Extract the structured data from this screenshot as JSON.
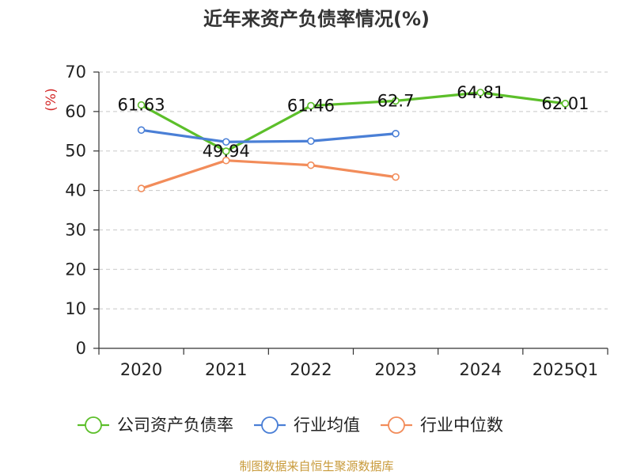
{
  "chart_data": {
    "type": "line",
    "title": "近年来资产负债率情况(%)",
    "ylabel": "(%)",
    "xlabel": "",
    "categories": [
      "2020",
      "2021",
      "2022",
      "2023",
      "2024",
      "2025Q1"
    ],
    "ylim": [
      0,
      70
    ],
    "yticks": [
      0,
      10,
      20,
      30,
      40,
      50,
      60,
      70
    ],
    "grid": true,
    "legend_position": "bottom",
    "series": [
      {
        "name": "公司资产负债率",
        "color": "#5cbf2a",
        "values": [
          61.63,
          49.94,
          61.46,
          62.7,
          64.81,
          62.01
        ],
        "labels": [
          "61.63",
          "49.94",
          "61.46",
          "62.7",
          "64.81",
          "62.01"
        ]
      },
      {
        "name": "行业均值",
        "color": "#4a7fd6",
        "values": [
          55.3,
          52.3,
          52.5,
          54.4,
          null,
          null
        ]
      },
      {
        "name": "行业中位数",
        "color": "#f28c5a",
        "values": [
          40.5,
          47.6,
          46.4,
          43.4,
          null,
          null
        ]
      }
    ]
  },
  "ylabel_color": "#d42a2a",
  "source": {
    "text": "制图数据来自恒生聚源数据库",
    "color": "#c89a3a"
  }
}
